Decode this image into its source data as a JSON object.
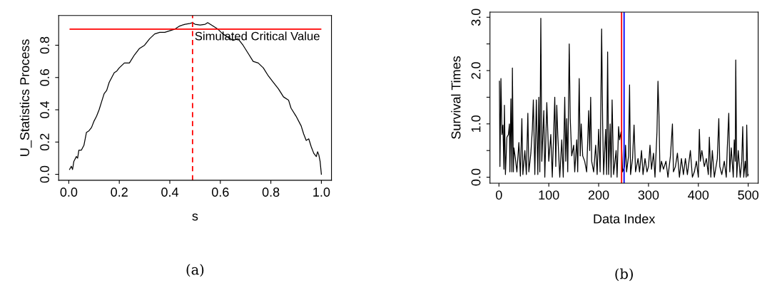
{
  "chart_data": [
    {
      "type": "line",
      "xlabel": "s",
      "ylabel": "U_Statistics Process",
      "legend": false,
      "grid": false,
      "xlim": [
        -0.04,
        1.04
      ],
      "ylim": [
        -0.037,
        0.984
      ],
      "xticks": [
        {
          "value": 0,
          "label": "0.0"
        },
        0.2,
        0.4,
        0.6,
        0.8,
        {
          "value": 1,
          "label": "1.0"
        }
      ],
      "yticks": [
        {
          "value": 0,
          "label": "0.0"
        },
        0.2,
        0.4,
        0.6,
        0.8
      ],
      "ref_lines": [
        {
          "axis": "y",
          "value": 0.9,
          "label": "Simulated Critical Value",
          "color": "#ff0000",
          "line_style": "solid"
        },
        {
          "axis": "x",
          "value": 0.49,
          "label": null,
          "color": "#ff0000",
          "line_style": "dashed"
        }
      ],
      "annotations": [
        "(a)"
      ],
      "series": [
        {
          "color": "#000000",
          "x": [
            0.003,
            0.01,
            0.015,
            0.02,
            0.03,
            0.035,
            0.04,
            0.05,
            0.06,
            0.07,
            0.08,
            0.09,
            0.1,
            0.11,
            0.12,
            0.13,
            0.14,
            0.15,
            0.16,
            0.17,
            0.18,
            0.19,
            0.2,
            0.22,
            0.24,
            0.26,
            0.28,
            0.3,
            0.32,
            0.34,
            0.36,
            0.38,
            0.4,
            0.42,
            0.44,
            0.46,
            0.48,
            0.49,
            0.5,
            0.52,
            0.54,
            0.55,
            0.57,
            0.59,
            0.61,
            0.63,
            0.65,
            0.67,
            0.69,
            0.71,
            0.73,
            0.75,
            0.77,
            0.79,
            0.81,
            0.83,
            0.85,
            0.87,
            0.88,
            0.9,
            0.92,
            0.93,
            0.94,
            0.95,
            0.96,
            0.97,
            0.98,
            0.985,
            0.99,
            0.995,
            1.0
          ],
          "values": [
            0.03,
            0.05,
            0.03,
            0.08,
            0.11,
            0.1,
            0.15,
            0.15,
            0.18,
            0.26,
            0.27,
            0.29,
            0.33,
            0.36,
            0.4,
            0.45,
            0.5,
            0.52,
            0.57,
            0.6,
            0.63,
            0.64,
            0.66,
            0.69,
            0.69,
            0.74,
            0.78,
            0.8,
            0.84,
            0.87,
            0.88,
            0.88,
            0.89,
            0.9,
            0.92,
            0.93,
            0.935,
            0.94,
            0.93,
            0.925,
            0.93,
            0.94,
            0.92,
            0.9,
            0.87,
            0.85,
            0.83,
            0.84,
            0.8,
            0.75,
            0.7,
            0.69,
            0.66,
            0.61,
            0.57,
            0.53,
            0.48,
            0.46,
            0.41,
            0.36,
            0.3,
            0.25,
            0.21,
            0.22,
            0.17,
            0.13,
            0.11,
            0.14,
            0.12,
            0.08,
            0.0
          ]
        }
      ]
    },
    {
      "type": "line",
      "xlabel": "Data Index",
      "ylabel": "Survival Times",
      "legend": false,
      "grid": false,
      "xlim": [
        -18,
        520
      ],
      "ylim": [
        -0.112,
        3.097
      ],
      "xticks": [
        0,
        100,
        200,
        300,
        400,
        500
      ],
      "yticks": [
        {
          "value": 0,
          "label": "0.0"
        },
        {
          "value": 0.5,
          "label": null
        },
        {
          "value": 1,
          "label": "1.0"
        },
        {
          "value": 1.5,
          "label": null
        },
        {
          "value": 2,
          "label": "2.0"
        },
        {
          "value": 2.5,
          "label": null
        },
        {
          "value": 3,
          "label": "3.0"
        }
      ],
      "ref_lines": [
        {
          "axis": "x",
          "value": 246,
          "label": null,
          "color": "#ff0000",
          "line_style": "solid"
        },
        {
          "axis": "x",
          "value": 251,
          "label": null,
          "color": "#0000ff",
          "line_style": "solid"
        }
      ],
      "annotations": [
        "(b)"
      ],
      "series": [
        {
          "color": "#000000",
          "x": [
            1,
            2,
            4,
            6,
            8,
            10,
            11,
            13,
            16,
            19,
            21,
            22,
            24,
            26,
            27,
            29,
            30,
            33,
            36,
            40,
            43,
            46,
            48,
            52,
            55,
            58,
            60,
            64,
            67,
            69,
            72,
            75,
            78,
            80,
            82,
            84,
            86,
            90,
            92,
            96,
            100,
            104,
            107,
            112,
            114,
            116,
            118,
            122,
            126,
            129,
            132,
            134,
            136,
            138,
            141,
            143,
            146,
            150,
            152,
            156,
            158,
            161,
            163,
            165,
            168,
            172,
            176,
            180,
            182,
            184,
            186,
            190,
            194,
            197,
            200,
            203,
            206,
            208,
            210,
            214,
            216,
            218,
            220,
            223,
            225,
            227,
            230,
            235,
            237,
            240,
            242,
            245,
            248,
            252,
            254,
            256,
            260,
            262,
            264,
            268,
            271,
            274,
            279,
            282,
            286,
            289,
            293,
            297,
            300,
            303,
            306,
            310,
            313,
            317,
            319,
            321,
            323,
            326,
            330,
            335,
            339,
            344,
            348,
            350,
            354,
            358,
            362,
            366,
            370,
            374,
            378,
            384,
            388,
            392,
            396,
            400,
            402,
            404,
            407,
            412,
            416,
            420,
            422,
            425,
            428,
            432,
            438,
            441,
            443,
            447,
            452,
            456,
            458,
            461,
            463,
            466,
            470,
            472,
            474,
            475,
            477,
            480,
            484,
            487,
            489,
            491,
            494,
            496,
            497,
            499,
            500
          ],
          "values": [
            1.8,
            0.2,
            1.85,
            0.8,
            0.98,
            0.15,
            1.35,
            0.05,
            0.75,
            0.8,
            1.0,
            0.1,
            1.47,
            0.1,
            2.05,
            0.1,
            0.55,
            0.35,
            0.1,
            0.65,
            0.02,
            1.1,
            0.05,
            0.5,
            0.05,
            1.2,
            0.1,
            0.45,
            0.9,
            1.45,
            0.05,
            1.45,
            0.05,
            1.5,
            0.1,
            2.98,
            0.3,
            1.25,
            0.0,
            1.4,
            0.3,
            0.8,
            0.0,
            1.5,
            0.2,
            1.35,
            0.8,
            0.0,
            0.7,
            0.0,
            1.5,
            0.3,
            1.1,
            0.1,
            2.5,
            1.1,
            0.4,
            0.6,
            0.1,
            0.7,
            0.1,
            1.85,
            0.4,
            1.0,
            0.4,
            0.3,
            0.1,
            1.25,
            0.5,
            1.5,
            0.3,
            0.1,
            0.6,
            0.05,
            0.9,
            0.1,
            2.78,
            1.0,
            0.05,
            0.9,
            0.05,
            2.35,
            0.05,
            1.0,
            0.0,
            1.45,
            0.05,
            0.5,
            0.0,
            0.95,
            0.7,
            0.85,
            0.1,
            0.2,
            0.6,
            0.1,
            0.4,
            1.73,
            0.05,
            0.35,
            0.98,
            0.1,
            0.35,
            0.1,
            0.5,
            0.05,
            0.35,
            0.1,
            0.2,
            0.6,
            0.15,
            0.45,
            0.0,
            0.85,
            1.8,
            1.15,
            0.1,
            0.3,
            0.15,
            0.3,
            0.0,
            0.4,
            1.0,
            0.1,
            0.2,
            0.45,
            0.0,
            0.35,
            0.05,
            0.35,
            0.05,
            0.5,
            0.0,
            0.1,
            0.3,
            0.0,
            0.9,
            0.3,
            0.5,
            0.2,
            0.35,
            0.05,
            0.75,
            0.0,
            0.5,
            0.0,
            0.35,
            1.1,
            0.2,
            0.05,
            0.3,
            0.0,
            0.55,
            1.2,
            0.1,
            0.55,
            0.0,
            0.7,
            0.3,
            2.2,
            0.0,
            0.5,
            0.0,
            0.3,
            0.95,
            0.0,
            0.3,
            0.0,
            0.98,
            0.02,
            0.05
          ]
        }
      ]
    }
  ]
}
